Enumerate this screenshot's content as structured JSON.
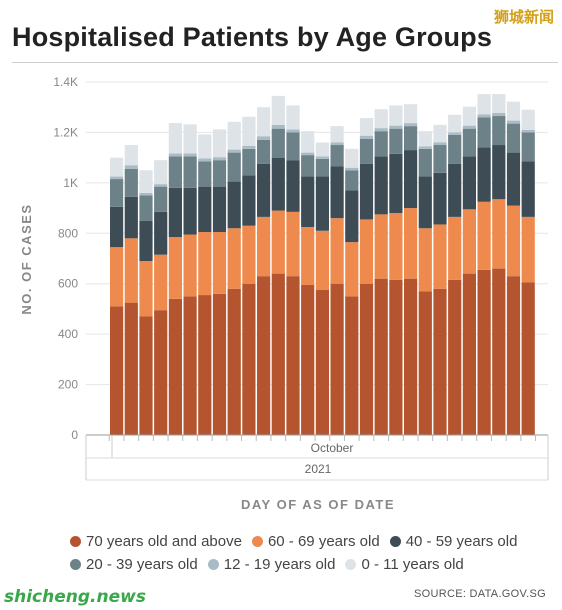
{
  "watermark_top": "狮城新闻",
  "watermark_bottom": "shicheng.news",
  "source_label": "SOURCE: DATA.GOV.SG",
  "colors": {
    "70_plus": "#b5552f",
    "60_69": "#ee8a4e",
    "40_59": "#3d4c55",
    "20_39": "#6d8189",
    "12_19": "#a9bcc6",
    "0_11": "#dde3e6"
  },
  "chart_data": {
    "type": "bar",
    "stacked": true,
    "title": "Hospitalised Patients by Age Groups",
    "xlabel": "DAY OF AS OF DATE",
    "ylabel": "NO. OF CASES",
    "x_month_label": "October",
    "x_year_label": "2021",
    "ylim": [
      0,
      1400
    ],
    "yticks": [
      0,
      200,
      400,
      600,
      800,
      1000,
      1200,
      1400
    ],
    "ytick_labels": [
      "0",
      "200",
      "400",
      "600",
      "800",
      "1K",
      "1.2K",
      "1.4K"
    ],
    "grid": true,
    "legend_position": "bottom",
    "series": [
      {
        "name": "70 years old and above",
        "color": "#b5552f",
        "values": [
          510,
          525,
          470,
          495,
          540,
          550,
          555,
          560,
          580,
          600,
          630,
          640,
          630,
          595,
          575,
          600,
          550,
          600,
          620,
          615,
          620,
          570,
          580,
          615,
          640,
          655,
          660,
          630,
          605
        ]
      },
      {
        "name": "60 - 69 years old",
        "color": "#ee8a4e",
        "values": [
          235,
          255,
          220,
          220,
          245,
          245,
          250,
          245,
          240,
          230,
          235,
          250,
          255,
          230,
          235,
          260,
          215,
          255,
          255,
          265,
          280,
          250,
          255,
          250,
          255,
          270,
          275,
          280,
          260
        ]
      },
      {
        "name": "40 - 59 years old",
        "color": "#3d4c55",
        "values": [
          160,
          165,
          160,
          170,
          195,
          185,
          180,
          180,
          185,
          200,
          210,
          210,
          205,
          200,
          215,
          205,
          205,
          220,
          230,
          235,
          230,
          205,
          205,
          210,
          210,
          215,
          215,
          210,
          220
        ]
      },
      {
        "name": "20 - 39 years old",
        "color": "#6d8189",
        "values": [
          110,
          110,
          100,
          100,
          125,
          125,
          100,
          105,
          115,
          105,
          95,
          115,
          110,
          85,
          70,
          85,
          80,
          100,
          100,
          100,
          95,
          110,
          110,
          115,
          110,
          120,
          115,
          115,
          115
        ]
      },
      {
        "name": "12 - 19 years old",
        "color": "#a9bcc6",
        "values": [
          10,
          15,
          10,
          10,
          12,
          12,
          12,
          12,
          12,
          12,
          15,
          15,
          12,
          10,
          10,
          10,
          10,
          12,
          12,
          12,
          12,
          10,
          10,
          10,
          12,
          12,
          12,
          12,
          10
        ]
      },
      {
        "name": "0 - 11 years old",
        "color": "#dde3e6",
        "values": [
          75,
          80,
          90,
          95,
          120,
          115,
          95,
          110,
          110,
          115,
          115,
          115,
          95,
          85,
          55,
          65,
          75,
          70,
          75,
          80,
          75,
          60,
          70,
          70,
          75,
          80,
          75,
          75,
          80
        ]
      }
    ]
  }
}
